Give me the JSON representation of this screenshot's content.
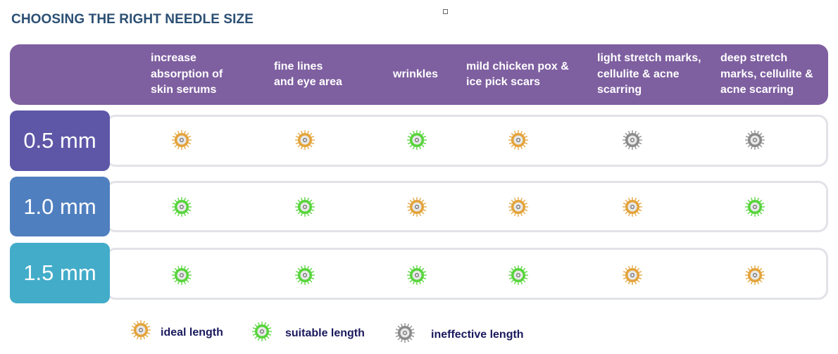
{
  "title": "CHOOSING THE RIGHT NEEDLE SIZE",
  "columns": [
    "increase\nabsorption of\nskin serums",
    "fine lines\nand eye area",
    "wrinkles",
    "mild chicken pox &\nice pick scars",
    "light stretch marks,\ncellulite & acne\nscarring",
    "deep stretch\nmarks, cellulite &\nacne scarring"
  ],
  "rows": [
    {
      "label": "0.5 mm",
      "color": "#5e57a8",
      "ratings": [
        "ideal",
        "ideal",
        "suitable",
        "ideal",
        "ineffective",
        "ineffective"
      ]
    },
    {
      "label": "1.0 mm",
      "color": "#4f7fbf",
      "ratings": [
        "suitable",
        "suitable",
        "ideal",
        "ideal",
        "ideal",
        "suitable"
      ]
    },
    {
      "label": "1.5 mm",
      "color": "#42acc9",
      "ratings": [
        "suitable",
        "suitable",
        "suitable",
        "suitable",
        "ideal",
        "ideal"
      ]
    }
  ],
  "legend": {
    "ideal": "ideal length",
    "suitable": "suitable length",
    "ineffective": "ineffective length"
  },
  "colors": {
    "ideal": "#e3a33a",
    "suitable": "#56d43a",
    "ineffective": "#8a8a8a",
    "header": "#7e5fa0",
    "title": "#2b4f73"
  }
}
